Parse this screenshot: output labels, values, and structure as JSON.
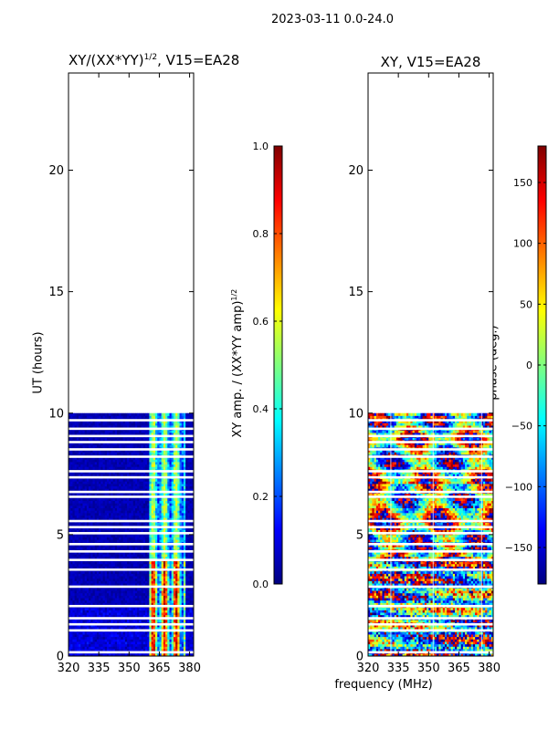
{
  "suptitle": "2023-03-11 0.0-24.0",
  "shared_xlabel": "frequency (MHz)",
  "colors": {
    "jet": [
      "#00007f",
      "#0000ff",
      "#007fff",
      "#00ffff",
      "#7fff7f",
      "#ffff00",
      "#ff7f00",
      "#ff0000",
      "#7f0000"
    ],
    "gap": "#ffffff"
  },
  "chart_data": [
    {
      "type": "heatmap",
      "title_main": "XY/(XX*YY)",
      "title_sup": "1/2",
      "title_suffix": ", V15=EA28",
      "xlabel": "",
      "ylabel": "UT (hours)",
      "xlim": [
        320,
        382
      ],
      "ylim": [
        0,
        24
      ],
      "xticks": [
        "320",
        "335",
        "350",
        "365",
        "380"
      ],
      "xtick_values": [
        320,
        335,
        350,
        365,
        380
      ],
      "yticks": [
        "0",
        "5",
        "10",
        "15",
        "20"
      ],
      "ytick_values": [
        0,
        5,
        10,
        15,
        20
      ],
      "data_extent_hours": [
        0,
        10
      ],
      "high_band_mhz": [
        360,
        377
      ],
      "colorbar": {
        "label_main": "XY amp. / (XX*YY amp)",
        "label_sup": "1/2",
        "range": [
          0.0,
          1.0
        ],
        "ticks": [
          "0.0",
          "0.2",
          "0.4",
          "0.6",
          "0.8",
          "1.0"
        ],
        "tick_values": [
          0.0,
          0.2,
          0.4,
          0.6,
          0.8,
          1.0
        ]
      }
    },
    {
      "type": "heatmap",
      "title": "XY, V15=EA28",
      "xlabel": "frequency (MHz)",
      "ylabel": "",
      "xlim": [
        320,
        382
      ],
      "ylim": [
        0,
        24
      ],
      "xticks": [
        "320",
        "335",
        "350",
        "365",
        "380"
      ],
      "xtick_values": [
        320,
        335,
        350,
        365,
        380
      ],
      "yticks": [
        "0",
        "5",
        "10",
        "15",
        "20"
      ],
      "ytick_values": [
        0,
        5,
        10,
        15,
        20
      ],
      "data_extent_hours": [
        0,
        10
      ],
      "colorbar": {
        "label": "phase (deg.)",
        "range": [
          -180,
          180
        ],
        "ticks": [
          "−150",
          "−100",
          "−50",
          "0",
          "50",
          "100",
          "150"
        ],
        "tick_values": [
          -150,
          -100,
          -50,
          0,
          50,
          100,
          150
        ]
      }
    }
  ]
}
